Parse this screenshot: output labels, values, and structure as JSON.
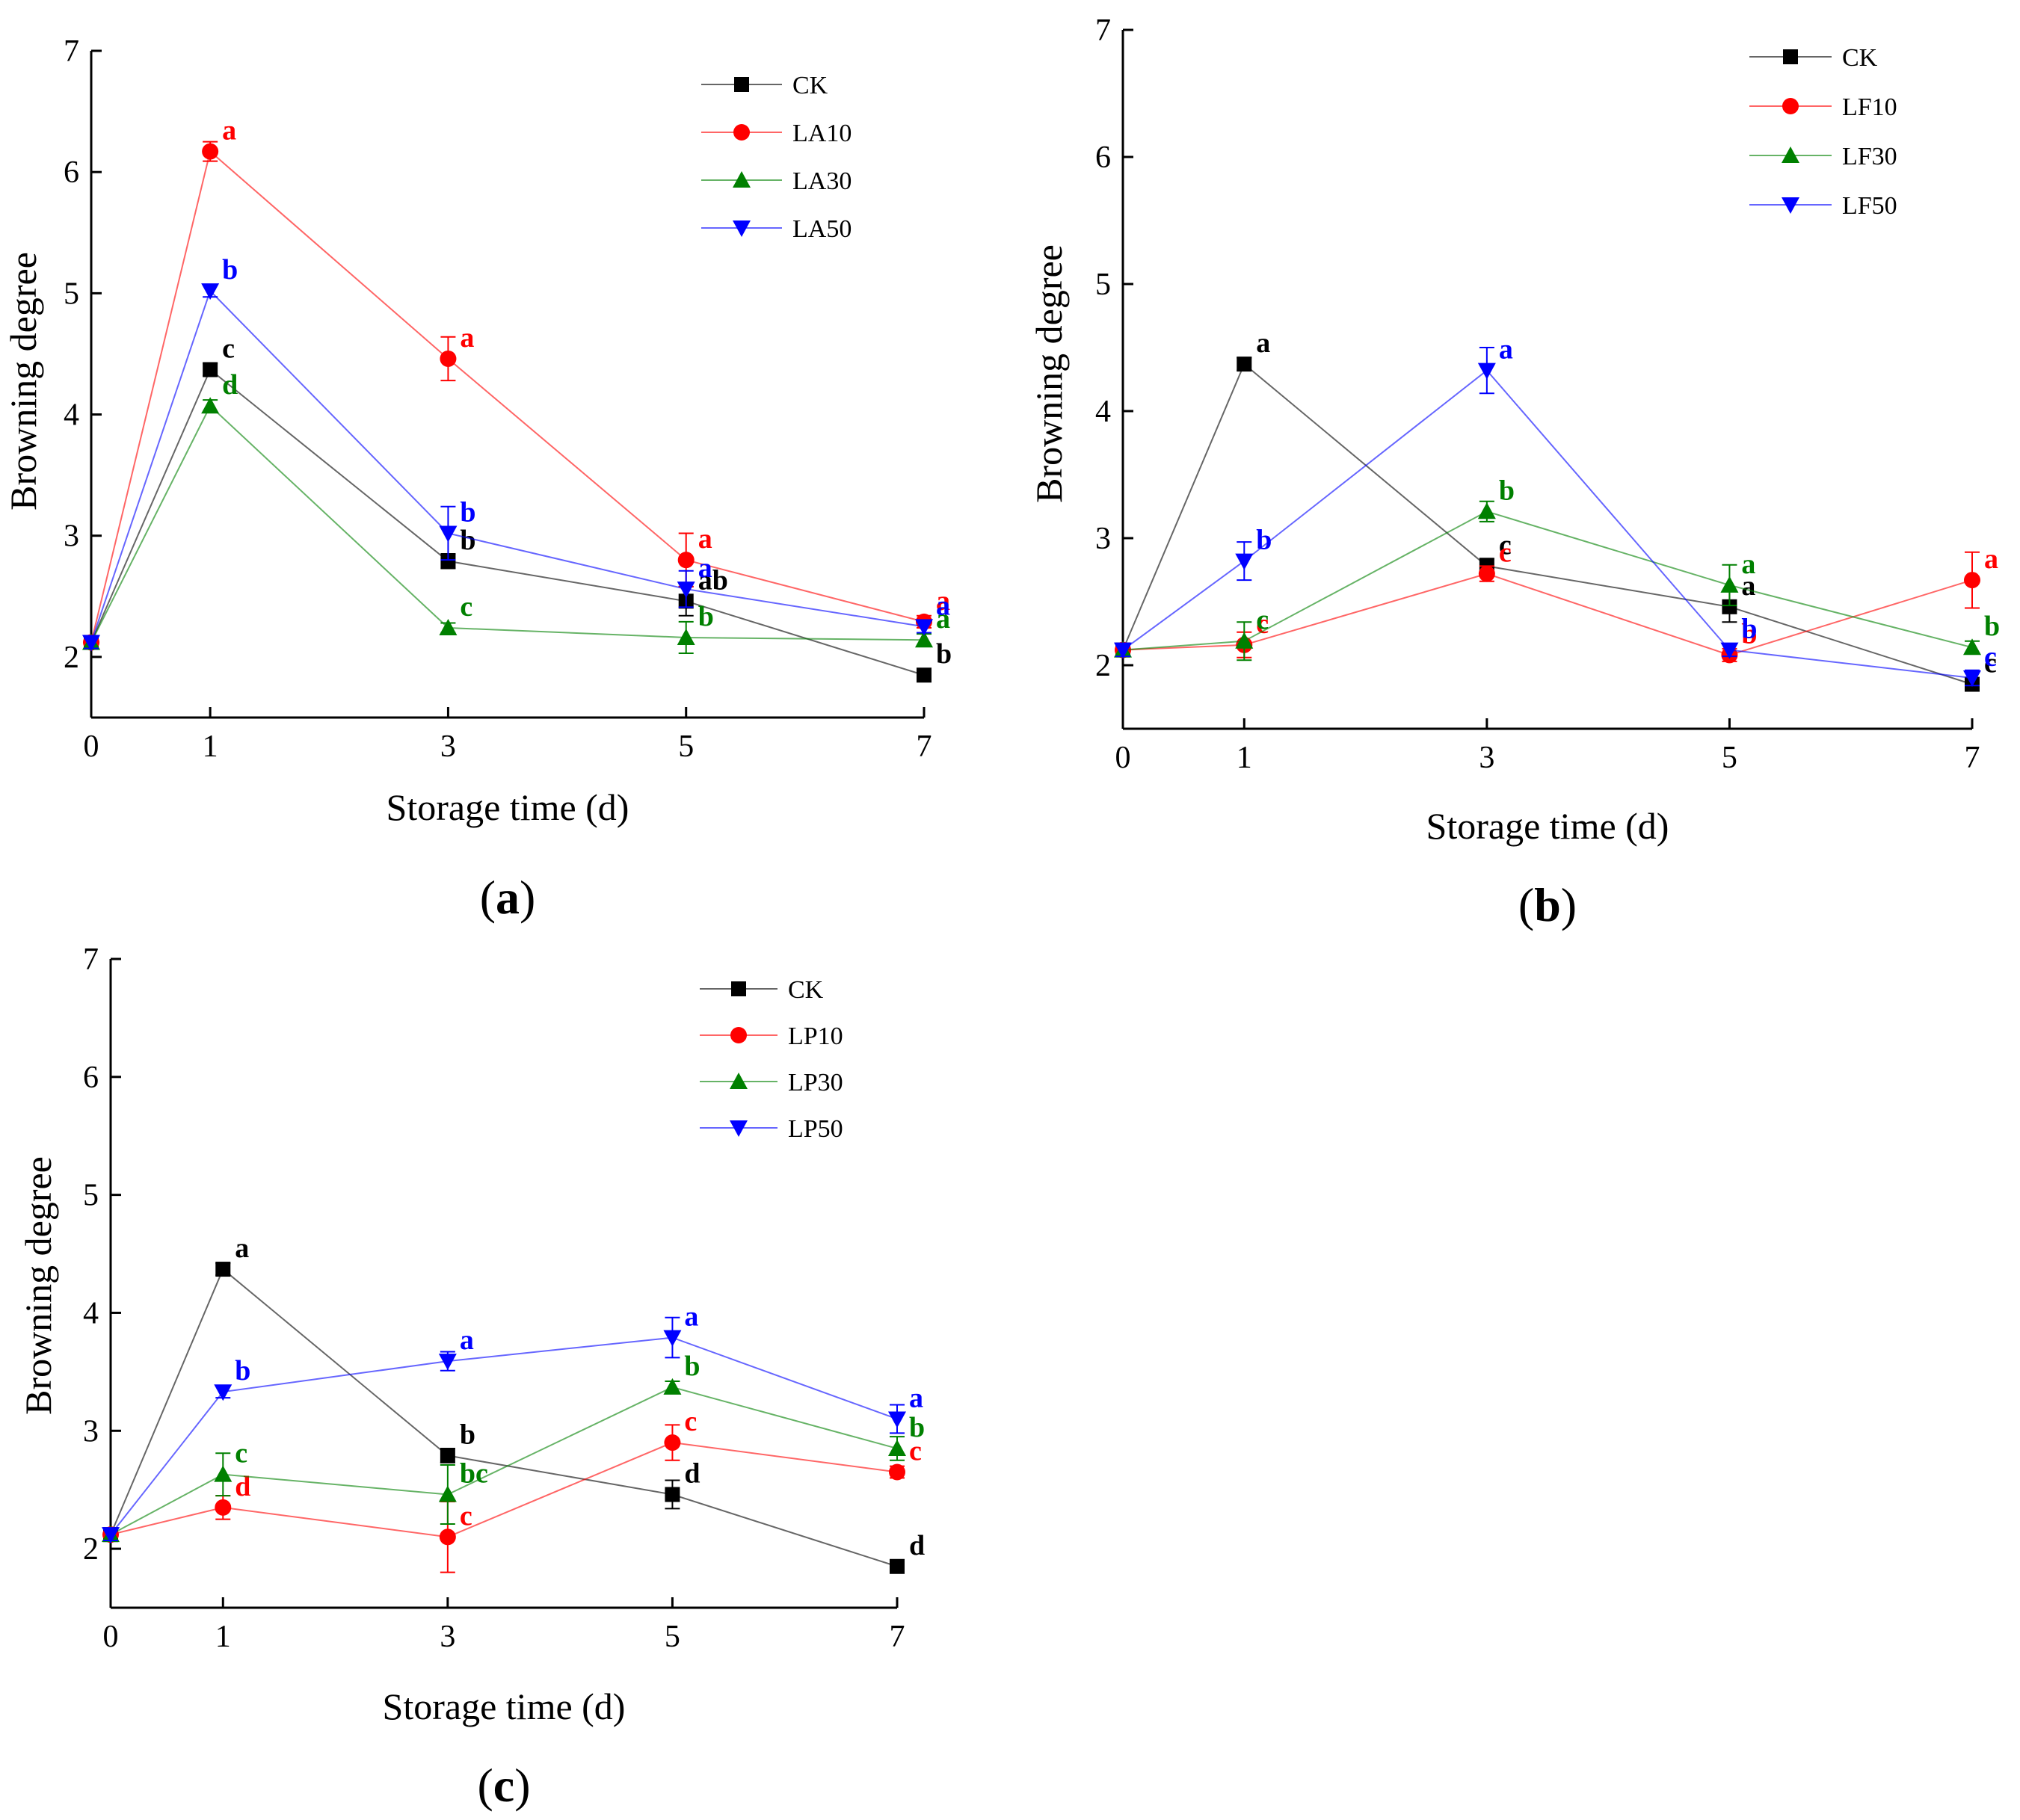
{
  "chart_data": [
    {
      "type": "line",
      "panel": "a",
      "panel_label": "a",
      "xlabel": "Storage time (d)",
      "ylabel": "Browning degree",
      "x": [
        0,
        1,
        3,
        5,
        7
      ],
      "xticks": [
        "0",
        "1",
        "3",
        "5",
        "7"
      ],
      "yticks": [
        "2",
        "3",
        "4",
        "5",
        "6",
        "7"
      ],
      "xlim": [
        0,
        7
      ],
      "ylim": [
        1.5,
        7
      ],
      "legend_position": "top-right",
      "series": [
        {
          "name": "CK",
          "color": "#000000",
          "marker": "square",
          "values": [
            2.12,
            4.37,
            2.79,
            2.46,
            1.85
          ],
          "errors": [
            0.05,
            0.05,
            0.06,
            0.12,
            0.03
          ],
          "sig": [
            "",
            "c",
            "b",
            "ab",
            "b"
          ]
        },
        {
          "name": "LA10",
          "color": "#ff0000",
          "marker": "circle",
          "values": [
            2.12,
            6.17,
            4.46,
            2.8,
            2.29
          ],
          "errors": [
            0.05,
            0.08,
            0.18,
            0.22,
            0.05
          ],
          "sig": [
            "",
            "a",
            "a",
            "a",
            "a"
          ]
        },
        {
          "name": "LA30",
          "color": "#008000",
          "marker": "triangle-up",
          "values": [
            2.12,
            4.07,
            2.24,
            2.16,
            2.14
          ],
          "errors": [
            0.05,
            0.05,
            0.04,
            0.13,
            0.05
          ],
          "sig": [
            "",
            "d",
            "c",
            "b",
            "a"
          ]
        },
        {
          "name": "LA50",
          "color": "#0000ff",
          "marker": "triangle-down",
          "values": [
            2.12,
            5.02,
            3.02,
            2.56,
            2.25
          ],
          "errors": [
            0.05,
            0.05,
            0.22,
            0.15,
            0.05
          ],
          "sig": [
            "",
            "b",
            "b",
            "a",
            "a"
          ]
        }
      ]
    },
    {
      "type": "line",
      "panel": "b",
      "panel_label": "b",
      "xlabel": "Storage time (d)",
      "ylabel": "Browning degree",
      "x": [
        0,
        1,
        3,
        5,
        7
      ],
      "xticks": [
        "0",
        "1",
        "3",
        "5",
        "7"
      ],
      "yticks": [
        "2",
        "3",
        "4",
        "5",
        "6",
        "7"
      ],
      "xlim": [
        0,
        7
      ],
      "ylim": [
        1.5,
        7
      ],
      "legend_position": "top-right",
      "series": [
        {
          "name": "CK",
          "color": "#000000",
          "marker": "square",
          "values": [
            2.12,
            4.37,
            2.78,
            2.46,
            1.85
          ],
          "errors": [
            0.05,
            0.05,
            0.06,
            0.12,
            0.03
          ],
          "sig": [
            "",
            "a",
            "c",
            "a",
            "c"
          ]
        },
        {
          "name": "LF10",
          "color": "#ff0000",
          "marker": "circle",
          "values": [
            2.12,
            2.16,
            2.72,
            2.08,
            2.67
          ],
          "errors": [
            0.05,
            0.1,
            0.06,
            0.05,
            0.22
          ],
          "sig": [
            "",
            "c",
            "c",
            "b",
            "a"
          ]
        },
        {
          "name": "LF30",
          "color": "#008000",
          "marker": "triangle-up",
          "values": [
            2.12,
            2.19,
            3.21,
            2.63,
            2.14
          ],
          "errors": [
            0.05,
            0.15,
            0.08,
            0.16,
            0.05
          ],
          "sig": [
            "",
            "c",
            "b",
            "a",
            "b"
          ]
        },
        {
          "name": "LF50",
          "color": "#0000ff",
          "marker": "triangle-down",
          "values": [
            2.12,
            2.82,
            4.32,
            2.12,
            1.9
          ],
          "errors": [
            0.05,
            0.15,
            0.18,
            0.05,
            0.06
          ],
          "sig": [
            "",
            "b",
            "a",
            "b",
            "c"
          ]
        }
      ]
    },
    {
      "type": "line",
      "panel": "c",
      "panel_label": "c",
      "xlabel": "Storage time (d)",
      "ylabel": "Browning degree",
      "x": [
        0,
        1,
        3,
        5,
        7
      ],
      "xticks": [
        "0",
        "1",
        "3",
        "5",
        "7"
      ],
      "yticks": [
        "2",
        "3",
        "4",
        "5",
        "6",
        "7"
      ],
      "xlim": [
        0,
        7
      ],
      "ylim": [
        1.5,
        7
      ],
      "legend_position": "top-right",
      "series": [
        {
          "name": "CK",
          "color": "#000000",
          "marker": "square",
          "values": [
            2.12,
            4.37,
            2.79,
            2.46,
            1.85
          ],
          "errors": [
            0.05,
            0.05,
            0.06,
            0.12,
            0.03
          ],
          "sig": [
            "",
            "a",
            "b",
            "d",
            "d"
          ]
        },
        {
          "name": "LP10",
          "color": "#ff0000",
          "marker": "circle",
          "values": [
            2.12,
            2.35,
            2.1,
            2.9,
            2.65
          ],
          "errors": [
            0.05,
            0.1,
            0.3,
            0.15,
            0.05
          ],
          "sig": [
            "",
            "d",
            "c",
            "c",
            "c"
          ]
        },
        {
          "name": "LP30",
          "color": "#008000",
          "marker": "triangle-up",
          "values": [
            2.12,
            2.63,
            2.46,
            3.37,
            2.85
          ],
          "errors": [
            0.05,
            0.18,
            0.25,
            0.05,
            0.1
          ],
          "sig": [
            "",
            "c",
            "bc",
            "b",
            "b"
          ]
        },
        {
          "name": "LP50",
          "color": "#0000ff",
          "marker": "triangle-down",
          "values": [
            2.12,
            3.33,
            3.59,
            3.79,
            3.1
          ],
          "errors": [
            0.05,
            0.05,
            0.08,
            0.17,
            0.12
          ],
          "sig": [
            "",
            "b",
            "a",
            "a",
            "a"
          ]
        }
      ]
    }
  ]
}
